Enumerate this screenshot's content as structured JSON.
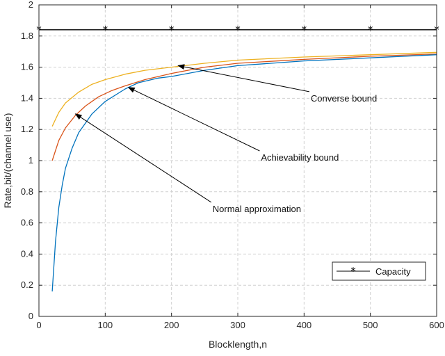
{
  "chart_data": {
    "type": "line",
    "xlabel": "Blocklength,n",
    "ylabel": "Rate,bit/(channel use)",
    "xlim": [
      0,
      600
    ],
    "ylim": [
      0,
      2
    ],
    "xticks": [
      0,
      100,
      200,
      300,
      400,
      500,
      600
    ],
    "yticks": [
      0,
      0.2,
      0.4,
      0.6,
      0.8,
      1,
      1.2,
      1.4,
      1.6,
      1.8,
      2
    ],
    "grid": true,
    "legend": {
      "position": "bottom-right",
      "entries": [
        "Capacity"
      ]
    },
    "series": [
      {
        "name": "Capacity",
        "color": "#000000",
        "marker": "asterisk",
        "x": [
          0,
          100,
          200,
          300,
          400,
          500,
          600
        ],
        "y": [
          1.84,
          1.84,
          1.84,
          1.84,
          1.84,
          1.84,
          1.84
        ]
      },
      {
        "name": "Converse bound",
        "color": "#EDB120",
        "x": [
          20,
          30,
          40,
          60,
          80,
          100,
          130,
          160,
          200,
          250,
          300,
          400,
          500,
          600
        ],
        "y": [
          1.22,
          1.31,
          1.37,
          1.44,
          1.49,
          1.52,
          1.555,
          1.58,
          1.6,
          1.625,
          1.645,
          1.665,
          1.68,
          1.695
        ]
      },
      {
        "name": "Achievability bound",
        "color": "#D95319",
        "x": [
          20,
          30,
          40,
          55,
          70,
          90,
          110,
          130,
          160,
          200,
          250,
          300,
          400,
          500,
          600
        ],
        "y": [
          1.0,
          1.13,
          1.21,
          1.29,
          1.35,
          1.41,
          1.45,
          1.48,
          1.52,
          1.56,
          1.6,
          1.625,
          1.65,
          1.67,
          1.685
        ]
      },
      {
        "name": "Normal approximation",
        "color": "#0072BD",
        "x": [
          20,
          25,
          30,
          35,
          40,
          50,
          60,
          80,
          100,
          130,
          150,
          180,
          200,
          250,
          300,
          400,
          500,
          600
        ],
        "y": [
          0.16,
          0.48,
          0.7,
          0.84,
          0.95,
          1.08,
          1.18,
          1.3,
          1.38,
          1.46,
          1.5,
          1.53,
          1.54,
          1.58,
          1.61,
          1.64,
          1.66,
          1.68
        ]
      }
    ],
    "annotations": [
      {
        "text": "Converse bound",
        "text_x": 410,
        "text_y": 1.38,
        "point_x": 210,
        "point_y": 1.61
      },
      {
        "text": "Achievability bound",
        "text_x": 335,
        "text_y": 1.0,
        "point_x": 135,
        "point_y": 1.47
      },
      {
        "text": "Normal approximation",
        "text_x": 262,
        "text_y": 0.67,
        "point_x": 55,
        "point_y": 1.3
      }
    ]
  }
}
